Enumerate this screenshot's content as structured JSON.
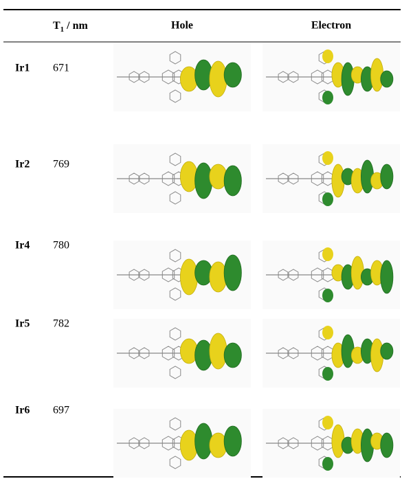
{
  "header": {
    "label": "",
    "t1": {
      "symbol": "T",
      "subscript": "1",
      "unit": " / nm"
    },
    "hole": "Hole",
    "electron": "Electron"
  },
  "table": {
    "rows": [
      {
        "name": "Ir1",
        "t1": 671
      },
      {
        "name": "Ir2",
        "t1": 769
      },
      {
        "name": "Ir4",
        "t1": 780
      },
      {
        "name": "Ir5",
        "t1": 782
      },
      {
        "name": "Ir6",
        "t1": 697
      }
    ]
  }
}
